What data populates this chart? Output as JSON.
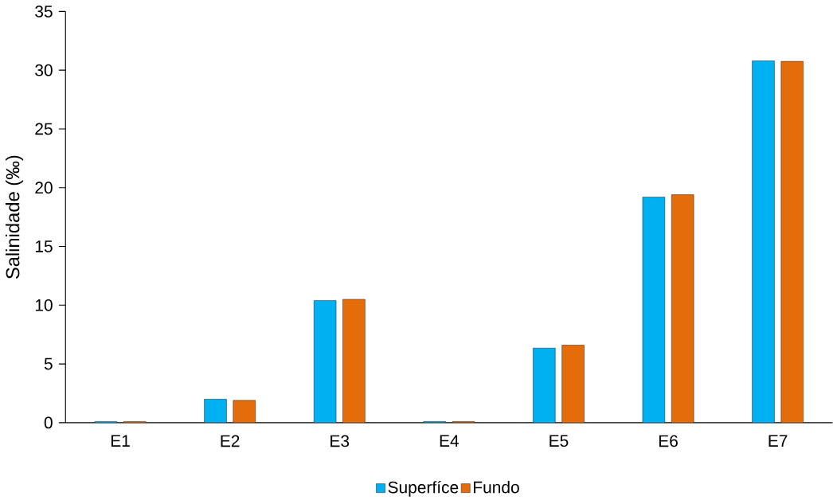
{
  "chart_data": {
    "type": "bar",
    "ylabel": "Salinidade (‰)",
    "categories": [
      "E1",
      "E2",
      "E3",
      "E4",
      "E5",
      "E6",
      "E7"
    ],
    "series": [
      {
        "name": "Superfíce",
        "color": "#00b0f0",
        "values": [
          0.1,
          2.0,
          10.4,
          0.1,
          6.35,
          19.2,
          30.8
        ]
      },
      {
        "name": "Fundo",
        "color": "#e46c0a",
        "values": [
          0.1,
          1.9,
          10.5,
          0.1,
          6.6,
          19.4,
          30.75
        ]
      }
    ],
    "ylim": [
      0,
      35
    ],
    "yticks": [
      0,
      5,
      10,
      15,
      20,
      25,
      30,
      35
    ],
    "legend": "bottom",
    "grid": false
  }
}
